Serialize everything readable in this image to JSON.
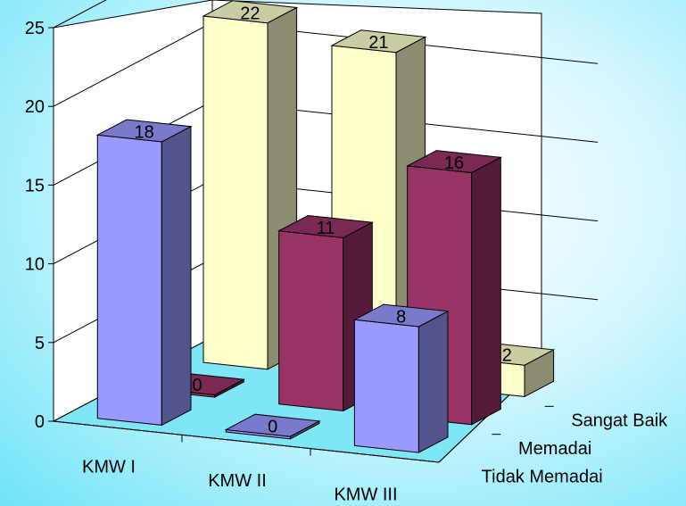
{
  "chart_data": {
    "type": "bar",
    "title": "",
    "xlabel": "",
    "ylabel": "",
    "ylim": [
      0,
      25
    ],
    "yticks": [
      "0",
      "5",
      "10",
      "15",
      "20",
      "25"
    ],
    "categories": [
      "KMW I",
      "KMW II",
      "KMW III"
    ],
    "series": [
      {
        "name": "Tidak Memadai",
        "values": [
          18,
          0,
          8
        ],
        "labels": [
          "18",
          "0",
          "8"
        ],
        "color": "#9999ff"
      },
      {
        "name": "Memadai",
        "values": [
          0,
          11,
          16
        ],
        "labels": [
          "0",
          "11",
          "16"
        ],
        "color": "#993366"
      },
      {
        "name": "Sangat Baik",
        "values": [
          22,
          21,
          2
        ],
        "labels": [
          "22",
          "21",
          "2"
        ],
        "color": "#ffffcc"
      }
    ],
    "grid": true,
    "legend": "none"
  }
}
